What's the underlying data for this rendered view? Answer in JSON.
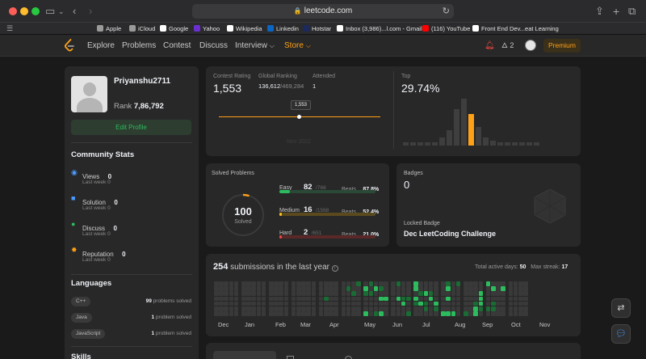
{
  "browser": {
    "url": "leetcode.com",
    "bookmarks": [
      {
        "label": "Apple",
        "color": "#9a9a9a"
      },
      {
        "label": "iCloud",
        "color": "#9a9a9a"
      },
      {
        "label": "Google",
        "color": "#ffffff"
      },
      {
        "label": "Yahoo",
        "color": "#6b2fd1"
      },
      {
        "label": "Wikipedia",
        "color": "#ffffff"
      },
      {
        "label": "Linkedin",
        "color": "#0a66c2"
      },
      {
        "label": "Hotstar",
        "color": "#1b2a5c"
      },
      {
        "label": "Inbox (3,986)...l.com - Gmail",
        "color": "#ffffff"
      },
      {
        "label": "(116) YouTube",
        "color": "#ff0000"
      },
      {
        "label": "Front End Dev...eat Learning",
        "color": "#ffffff"
      }
    ]
  },
  "nav": {
    "items": [
      "Explore",
      "Problems",
      "Contest",
      "Discuss",
      "Interview",
      "Store"
    ],
    "streak": "2",
    "premium": "Premium"
  },
  "profile": {
    "username": "Priyanshu2711",
    "rank_label": "Rank",
    "rank": "7,86,792",
    "edit_profile": "Edit Profile"
  },
  "community": {
    "title": "Community Stats",
    "last_week_label": "Last week",
    "items": [
      {
        "label": "Views",
        "value": "0",
        "last_week": "0",
        "icon": "eye-icon",
        "color": "#4b9bff"
      },
      {
        "label": "Solution",
        "value": "0",
        "last_week": "0",
        "icon": "solution-icon",
        "color": "#4b9bff"
      },
      {
        "label": "Discuss",
        "value": "0",
        "last_week": "0",
        "icon": "discuss-icon",
        "color": "#2cbb5d"
      },
      {
        "label": "Reputation",
        "value": "0",
        "last_week": "0",
        "icon": "star-icon",
        "color": "#ffa116"
      }
    ]
  },
  "languages": {
    "title": "Languages",
    "items": [
      {
        "name": "C++",
        "count": "99",
        "suffix": "problems solved"
      },
      {
        "name": "Java",
        "count": "1",
        "suffix": "problem solved"
      },
      {
        "name": "JavaScript",
        "count": "1",
        "suffix": "problem solved"
      }
    ],
    "next_title": "Skills"
  },
  "contest": {
    "rating_label": "Contest Rating",
    "rating": "1,553",
    "global_label": "Global Ranking",
    "global": "136,612",
    "global_total": "/469,284",
    "attended_label": "Attended",
    "attended": "1",
    "tooltip": "1,553",
    "faded_date": "Nov 2022",
    "top_label": "Top",
    "top": "29.74%",
    "histogram": [
      1,
      1,
      1,
      1,
      1,
      3,
      6,
      14,
      18,
      12,
      7,
      3,
      2,
      1,
      1,
      1,
      1,
      1,
      1
    ],
    "highlight_index": 9
  },
  "solved": {
    "title": "Solved Problems",
    "total": "100",
    "total_label": "Solved",
    "beats_label": "Beats",
    "rows": [
      {
        "label": "Easy",
        "count": "82",
        "total": "/766",
        "beats": "87.8%",
        "fraction": 0.107,
        "color": "#2cbb5d",
        "track": "#2a4a37"
      },
      {
        "label": "Medium",
        "count": "16",
        "total": "/1568",
        "beats": "52.4%",
        "fraction": 0.01,
        "color": "#ffc01e",
        "track": "#5a4a1e"
      },
      {
        "label": "Hard",
        "count": "2",
        "total": "/651",
        "beats": "21.0%",
        "fraction": 0.003,
        "color": "#ef4743",
        "track": "#5a2828"
      }
    ]
  },
  "badges": {
    "title": "Badges",
    "count": "0",
    "locked_label": "Locked Badge",
    "locked_name": "Dec LeetCoding Challenge"
  },
  "submissions": {
    "count": "254",
    "label": "submissions in the last year",
    "active_label": "Total active days:",
    "active": "50",
    "streak_label": "Max streak:",
    "streak": "17",
    "months": [
      "Dec",
      "Jan",
      "Feb",
      "Mar",
      "Apr",
      "May",
      "Jun",
      "Jul",
      "Aug",
      "Sep",
      "Oct",
      "Nov"
    ]
  }
}
